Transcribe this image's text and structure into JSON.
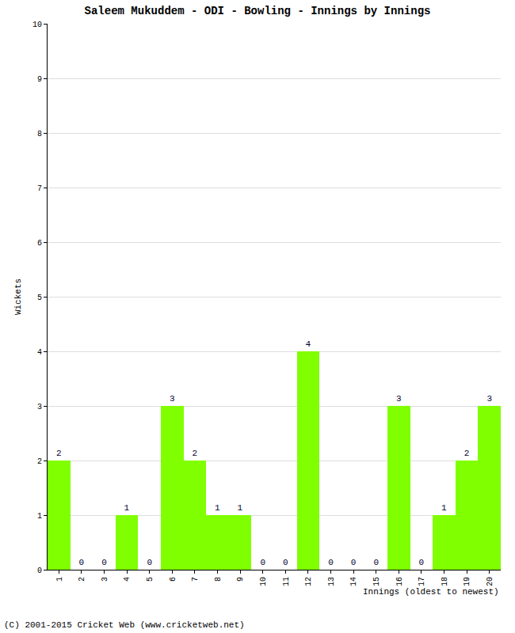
{
  "chart_data": {
    "type": "bar",
    "title": "Saleem Mukuddem - ODI - Bowling - Innings by Innings",
    "x_label": "Innings (oldest to newest)",
    "y_label": "Wickets",
    "categories": [
      "1",
      "2",
      "3",
      "4",
      "5",
      "6",
      "7",
      "8",
      "9",
      "10",
      "11",
      "12",
      "13",
      "14",
      "15",
      "16",
      "17",
      "18",
      "19",
      "20"
    ],
    "values": [
      2,
      0,
      0,
      1,
      0,
      3,
      2,
      1,
      1,
      0,
      0,
      4,
      0,
      0,
      0,
      3,
      0,
      1,
      2,
      3
    ],
    "color": "#80ff00",
    "ylim": [
      0,
      10
    ],
    "yticks": [
      0,
      1,
      2,
      3,
      4,
      5,
      6,
      7,
      8,
      9,
      10
    ],
    "grid": true,
    "data_labels": true,
    "annotations": [
      "(C) 2001-2015 Cricket Web (www.cricketweb.net)"
    ]
  }
}
